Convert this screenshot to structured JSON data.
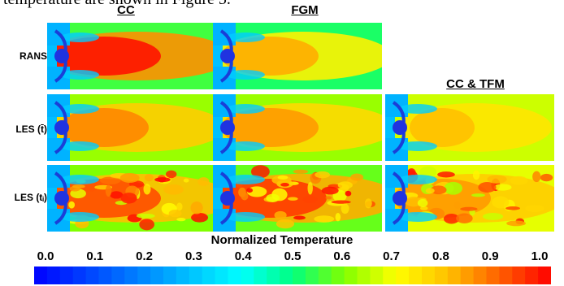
{
  "caption_fragment": "temperature are shown in Figure 5.",
  "columns": [
    "CC",
    "FGM",
    "CC & TFM"
  ],
  "rows": [
    "RANS",
    "LES (t̄)",
    "LES (tᵢ)"
  ],
  "colorbar": {
    "title": "Normalized Temperature",
    "ticks": [
      "0.0",
      "0.1",
      "0.2",
      "0.3",
      "0.4",
      "0.5",
      "0.6",
      "0.7",
      "0.8",
      "0.9",
      "1.0"
    ],
    "colors": [
      "#0000ff",
      "#0040ff",
      "#0080ff",
      "#00c0ff",
      "#00ffff",
      "#00ff80",
      "#80ff00",
      "#ffff00",
      "#ffc000",
      "#ff6000",
      "#ff0000"
    ]
  },
  "panels": [
    {
      "row": 0,
      "col": 0,
      "field": "rans-cc"
    },
    {
      "row": 0,
      "col": 1,
      "field": "rans-fgm"
    },
    {
      "row": 1,
      "col": 0,
      "field": "les-mean-cc"
    },
    {
      "row": 1,
      "col": 1,
      "field": "les-mean-fgm"
    },
    {
      "row": 1,
      "col": 2,
      "field": "les-mean-cctfm"
    },
    {
      "row": 2,
      "col": 0,
      "field": "les-inst-cc"
    },
    {
      "row": 2,
      "col": 1,
      "field": "les-inst-fgm"
    },
    {
      "row": 2,
      "col": 2,
      "field": "les-inst-cctfm"
    }
  ]
}
